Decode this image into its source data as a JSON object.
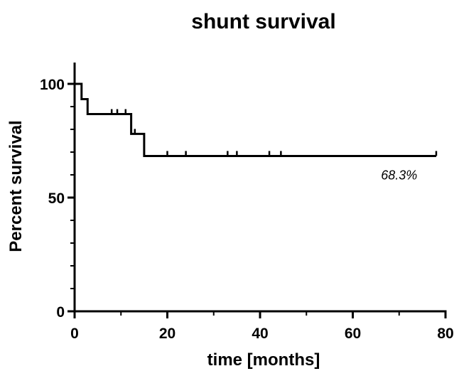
{
  "chart_data": {
    "type": "line",
    "title": "shunt survival",
    "xlabel": "time [months]",
    "ylabel": "Percent survival",
    "xlim": [
      0,
      80
    ],
    "ylim": [
      0,
      100
    ],
    "x_ticks": [
      0,
      20,
      40,
      60,
      80
    ],
    "y_ticks": [
      0,
      50,
      100
    ],
    "x_minor_ticks": [
      10,
      30,
      50,
      70
    ],
    "y_minor_ticks": [
      10,
      20,
      30,
      40,
      60,
      70,
      80,
      90
    ],
    "grid": false,
    "legend": "none",
    "series": [
      {
        "style": "step",
        "steps": [
          {
            "x": 0,
            "y": 100
          },
          {
            "x": 1.5,
            "y": 93.3
          },
          {
            "x": 2.8,
            "y": 86.7
          },
          {
            "x": 12.2,
            "y": 78.0
          },
          {
            "x": 15,
            "y": 68.3
          },
          {
            "x": 78,
            "y": 68.3
          }
        ],
        "censored": [
          {
            "x": 8,
            "y": 86.7
          },
          {
            "x": 9.2,
            "y": 86.7
          },
          {
            "x": 11,
            "y": 86.7
          },
          {
            "x": 13,
            "y": 78.0
          },
          {
            "x": 20,
            "y": 68.3
          },
          {
            "x": 24,
            "y": 68.3
          },
          {
            "x": 33,
            "y": 68.3
          },
          {
            "x": 35,
            "y": 68.3
          },
          {
            "x": 42,
            "y": 68.3
          },
          {
            "x": 44.5,
            "y": 68.3
          },
          {
            "x": 78,
            "y": 68.3
          }
        ]
      }
    ],
    "annotations": [
      {
        "text": "68.3%",
        "x": 70,
        "y": 58
      }
    ]
  }
}
